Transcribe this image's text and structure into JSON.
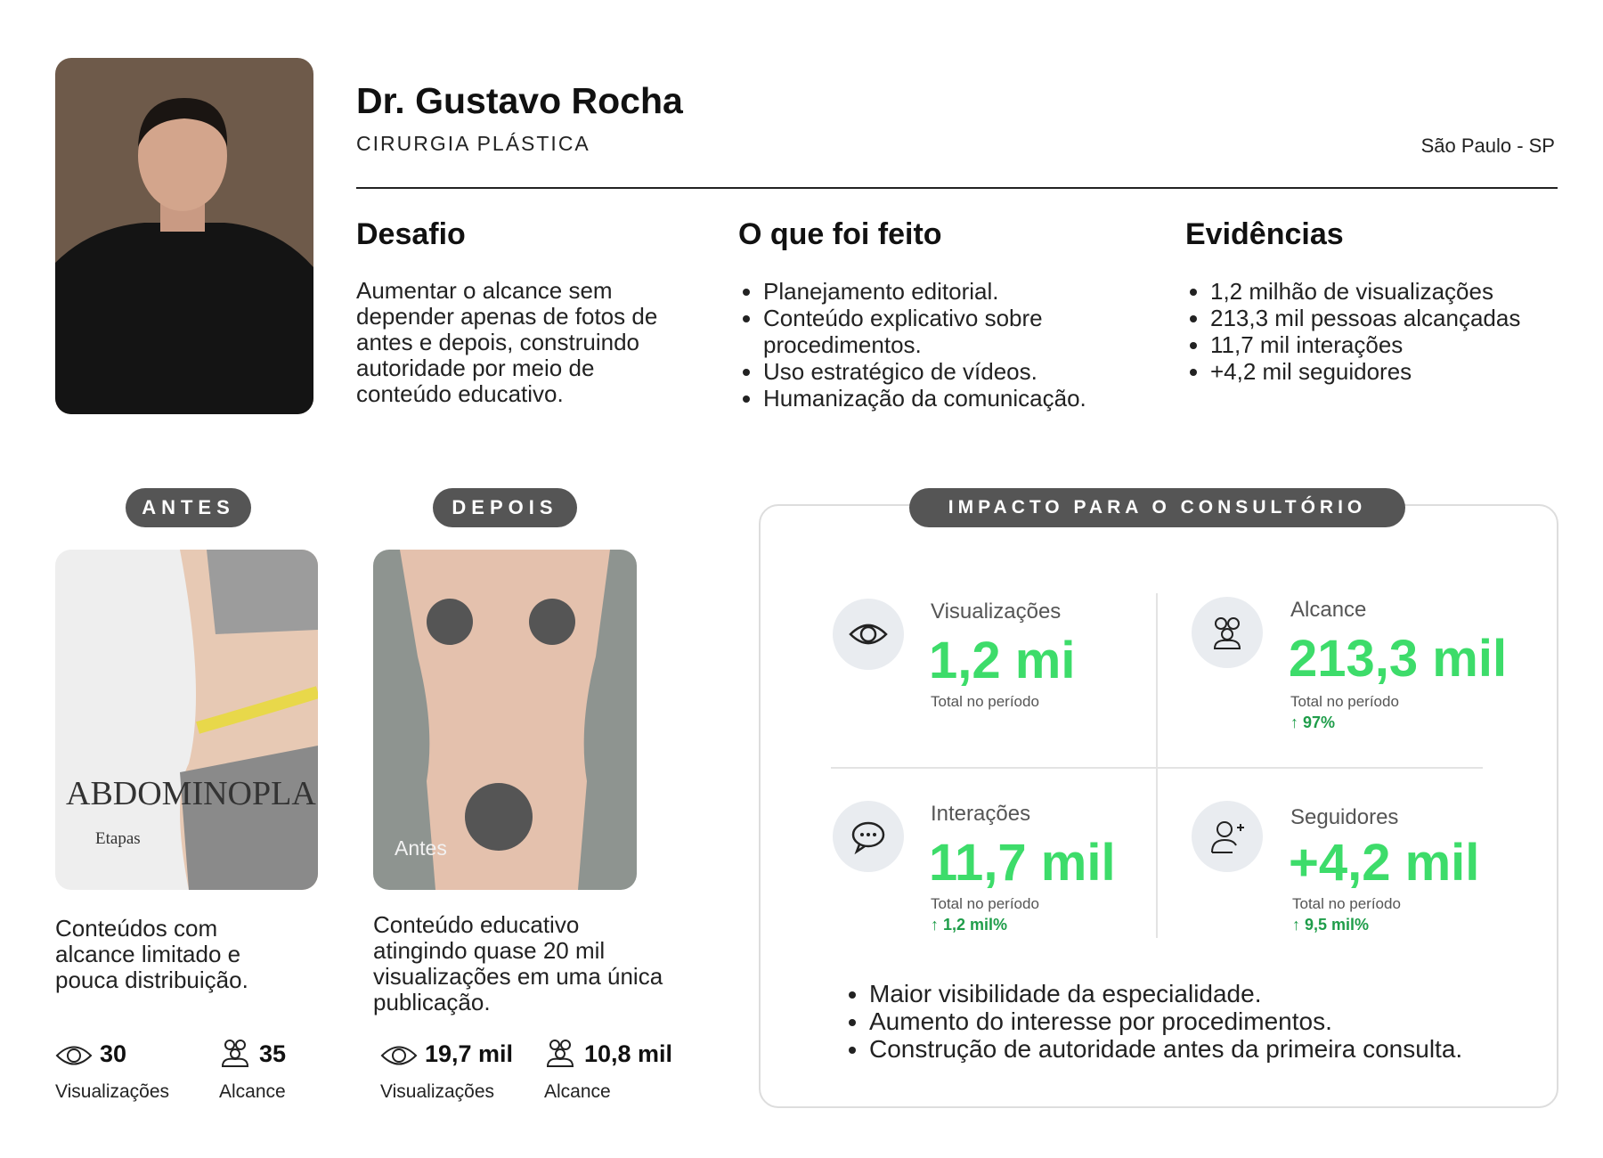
{
  "header": {
    "name": "Dr. Gustavo Rocha",
    "specialty": "CIRURGIA PLÁSTICA",
    "location": "São Paulo - SP"
  },
  "sections": [
    {
      "title": "Desafio",
      "paragraph": "Aumentar o alcance sem depender apenas de fotos de antes e depois, construindo autoridade por meio de conteúdo educativo."
    },
    {
      "title": "O que foi feito",
      "items": [
        "Planejamento editorial.",
        "Conteúdo explicativo sobre procedimentos.",
        "Uso estratégico de vídeos.",
        "Humanização da comunicação."
      ]
    },
    {
      "title": "Evidências",
      "items": [
        "1,2 milhão de visualizações",
        "213,3 mil pessoas alcançadas",
        "11,7 mil interações",
        "+4,2 mil seguidores"
      ]
    }
  ],
  "comparison": [
    {
      "badge": "ANTES",
      "image_text": [
        "ABDOMINOPLA",
        "Etapas"
      ],
      "caption": "Conteúdos com alcance limitado e pouca distribuição.",
      "stats": [
        {
          "value": "30",
          "label": "Visualizações"
        },
        {
          "value": "35",
          "label": "Alcance"
        }
      ]
    },
    {
      "badge": "DEPOIS",
      "image_text": [
        "Antes"
      ],
      "caption": "Conteúdo educativo atingindo quase 20 mil visualizações em uma única publicação.",
      "stats": [
        {
          "value": "19,7 mil",
          "label": "Visualizações"
        },
        {
          "value": "10,8 mil",
          "label": "Alcance"
        }
      ]
    }
  ],
  "impact": {
    "title": "IMPACTO PARA O CONSULTÓRIO",
    "metrics": [
      {
        "label": "Visualizações",
        "value": "1,2 mi",
        "note": "Total no período"
      },
      {
        "label": "Alcance",
        "value": "213,3 mil",
        "note": "Total no período",
        "change": "↑ 97%"
      },
      {
        "label": "Interações",
        "value": "11,7 mil",
        "note": "Total no período",
        "change": "↑ 1,2 mil%"
      },
      {
        "label": "Seguidores",
        "value": "+4,2 mil",
        "note": "Total no período",
        "change": "↑ 9,5 mil%"
      }
    ],
    "bullets": [
      "Maior visibilidade da especialidade.",
      "Aumento do interesse por procedimentos.",
      "Construção de autoridade antes da primeira consulta."
    ]
  }
}
